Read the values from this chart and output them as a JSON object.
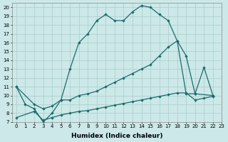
{
  "xlabel": "Humidex (Indice chaleur)",
  "bg_color": "#cce8e8",
  "grid_color": "#aacccc",
  "line_color": "#1a6b6b",
  "xlim": [
    -0.5,
    23
  ],
  "ylim": [
    7,
    20.5
  ],
  "xticks": [
    0,
    1,
    2,
    3,
    4,
    5,
    6,
    7,
    8,
    9,
    10,
    11,
    12,
    13,
    14,
    15,
    16,
    17,
    18,
    19,
    20,
    21,
    22,
    23
  ],
  "yticks": [
    7,
    8,
    9,
    10,
    11,
    12,
    13,
    14,
    15,
    16,
    17,
    18,
    19,
    20
  ],
  "line1_x": [
    0,
    1,
    2,
    3,
    4,
    5,
    6,
    7,
    8,
    9,
    10,
    11,
    12,
    13,
    14,
    15,
    16,
    17,
    18,
    19,
    20,
    22
  ],
  "line1_y": [
    11,
    9,
    8.5,
    7,
    8,
    9.5,
    13,
    16,
    17,
    18.5,
    19.2,
    18.5,
    18.5,
    19.5,
    20.2,
    20.0,
    19.2,
    18.5,
    16.2,
    10.2,
    10.2,
    10
  ],
  "line2_x": [
    0,
    2,
    3,
    4,
    5,
    6,
    7,
    8,
    9,
    10,
    11,
    12,
    13,
    14,
    15,
    16,
    17,
    18,
    19,
    20,
    21,
    22
  ],
  "line2_y": [
    11,
    9,
    8.5,
    8.8,
    9.5,
    9.5,
    10,
    10.2,
    10.5,
    11,
    11.5,
    12,
    12.5,
    13,
    13.5,
    14.5,
    15.5,
    16.2,
    14.5,
    10.2,
    13.2,
    10
  ],
  "line3_x": [
    0,
    2,
    3,
    4,
    5,
    6,
    7,
    8,
    9,
    10,
    11,
    12,
    13,
    14,
    15,
    16,
    17,
    18,
    19,
    20,
    21,
    22
  ],
  "line3_y": [
    7.5,
    8.2,
    7.2,
    7.5,
    7.8,
    8.0,
    8.2,
    8.3,
    8.5,
    8.7,
    8.9,
    9.1,
    9.3,
    9.5,
    9.7,
    9.9,
    10.1,
    10.3,
    10.3,
    9.5,
    9.7,
    9.9
  ],
  "marker": "D",
  "marker_size": 2.2,
  "linewidth": 0.9,
  "xlabel_fontsize": 6.5,
  "tick_fontsize": 5.0
}
